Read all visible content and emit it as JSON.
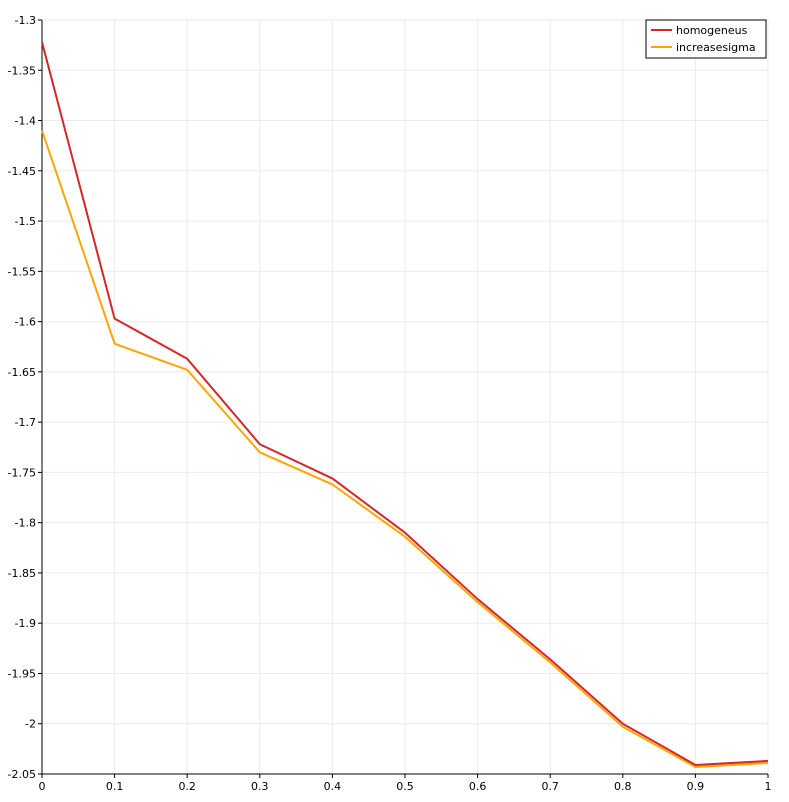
{
  "chart_data": {
    "type": "line",
    "title": "",
    "xlabel": "",
    "ylabel": "",
    "x": [
      0,
      0.1,
      0.2,
      0.3,
      0.4,
      0.5,
      0.6,
      0.7,
      0.8,
      0.9,
      1
    ],
    "xlim": [
      0,
      1
    ],
    "ylim": [
      -2.05,
      -1.3
    ],
    "x_ticks": [
      "0",
      "0.1",
      "0.2",
      "0.3",
      "0.4",
      "0.5",
      "0.6",
      "0.7",
      "0.8",
      "0.9",
      "1"
    ],
    "y_ticks": [
      "-1.3",
      "-1.35",
      "-1.4",
      "-1.45",
      "-1.5",
      "-1.55",
      "-1.6",
      "-1.65",
      "-1.7",
      "-1.75",
      "-1.8",
      "-1.85",
      "-1.9",
      "-1.95",
      "-2",
      "-2.05"
    ],
    "grid": true,
    "legend_position": "top-right",
    "series": [
      {
        "name": "homogeneus",
        "color": "#d62728",
        "values": [
          -1.322,
          -1.597,
          -1.637,
          -1.722,
          -1.756,
          -1.81,
          -1.876,
          -1.936,
          -2.0,
          -2.041,
          -2.037
        ]
      },
      {
        "name": "increasesigma",
        "color": "#ffa500",
        "values": [
          -1.41,
          -1.622,
          -1.648,
          -1.73,
          -1.762,
          -1.814,
          -1.879,
          -1.939,
          -2.003,
          -2.043,
          -2.039
        ]
      }
    ]
  }
}
